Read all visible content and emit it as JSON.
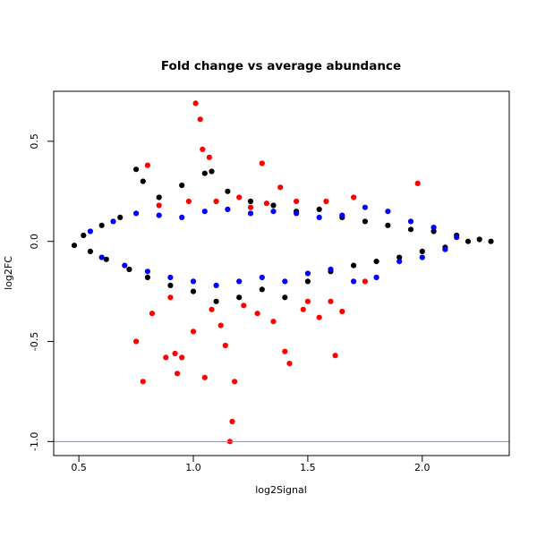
{
  "chart_data": {
    "type": "scatter",
    "title": "Fold change vs average abundance",
    "xlabel": "log2Signal",
    "ylabel": "log2FC",
    "xlim": [
      0.39,
      2.38
    ],
    "ylim": [
      -1.07,
      0.75
    ],
    "x_ticks": [
      "0.5",
      "1.0",
      "1.5",
      "2.0"
    ],
    "x_tick_values": [
      0.5,
      1.0,
      1.5,
      2.0
    ],
    "y_ticks": [
      "-1.0",
      "-0.5",
      "0.0",
      "0.5"
    ],
    "y_tick_values": [
      -1.0,
      -0.5,
      0.0,
      0.5
    ],
    "reference_line": {
      "y": -1.0,
      "color": "#7f7fff"
    },
    "grid": false,
    "legend": "none",
    "series": [
      {
        "color": "#000000",
        "description": "dense cloud of points along y=0",
        "points": [
          [
            0.48,
            -0.02
          ],
          [
            0.52,
            0.03
          ],
          [
            0.55,
            -0.05
          ],
          [
            0.6,
            0.08
          ],
          [
            0.62,
            -0.09
          ],
          [
            0.68,
            0.12
          ],
          [
            0.72,
            -0.14
          ],
          [
            0.75,
            0.36
          ],
          [
            0.78,
            0.3
          ],
          [
            0.8,
            -0.18
          ],
          [
            0.85,
            0.22
          ],
          [
            0.9,
            -0.22
          ],
          [
            0.95,
            0.28
          ],
          [
            1.0,
            -0.25
          ],
          [
            1.05,
            0.34
          ],
          [
            1.08,
            0.35
          ],
          [
            1.1,
            -0.3
          ],
          [
            1.15,
            0.25
          ],
          [
            1.2,
            -0.28
          ],
          [
            1.25,
            0.2
          ],
          [
            1.3,
            -0.24
          ],
          [
            1.35,
            0.18
          ],
          [
            1.4,
            -0.28
          ],
          [
            1.45,
            0.15
          ],
          [
            1.5,
            -0.2
          ],
          [
            1.55,
            0.16
          ],
          [
            1.6,
            -0.15
          ],
          [
            1.65,
            0.12
          ],
          [
            1.7,
            -0.12
          ],
          [
            1.75,
            0.1
          ],
          [
            1.8,
            -0.1
          ],
          [
            1.85,
            0.08
          ],
          [
            1.9,
            -0.08
          ],
          [
            1.95,
            0.06
          ],
          [
            2.0,
            -0.05
          ],
          [
            2.05,
            0.05
          ],
          [
            2.1,
            -0.03
          ],
          [
            2.15,
            0.03
          ],
          [
            2.2,
            0.0
          ],
          [
            2.25,
            0.01
          ],
          [
            2.3,
            0.0
          ]
        ]
      },
      {
        "color": "#0000ff",
        "description": "blue band of moderately changed points",
        "points": [
          [
            0.55,
            0.05
          ],
          [
            0.6,
            -0.08
          ],
          [
            0.65,
            0.1
          ],
          [
            0.7,
            -0.12
          ],
          [
            0.75,
            0.14
          ],
          [
            0.8,
            -0.15
          ],
          [
            0.85,
            0.13
          ],
          [
            0.9,
            -0.18
          ],
          [
            0.95,
            0.12
          ],
          [
            1.0,
            -0.2
          ],
          [
            1.05,
            0.15
          ],
          [
            1.1,
            -0.22
          ],
          [
            1.15,
            0.16
          ],
          [
            1.2,
            -0.2
          ],
          [
            1.25,
            0.14
          ],
          [
            1.3,
            -0.18
          ],
          [
            1.35,
            0.15
          ],
          [
            1.4,
            -0.2
          ],
          [
            1.45,
            0.14
          ],
          [
            1.5,
            -0.16
          ],
          [
            1.55,
            0.12
          ],
          [
            1.6,
            -0.14
          ],
          [
            1.65,
            0.13
          ],
          [
            1.7,
            -0.2
          ],
          [
            1.75,
            0.17
          ],
          [
            1.8,
            -0.18
          ],
          [
            1.85,
            0.15
          ],
          [
            1.9,
            -0.1
          ],
          [
            1.95,
            0.1
          ],
          [
            2.0,
            -0.08
          ],
          [
            2.05,
            0.07
          ],
          [
            2.1,
            -0.04
          ],
          [
            2.15,
            0.02
          ]
        ]
      },
      {
        "color": "#ff0000",
        "description": "red significantly changed points",
        "points": [
          [
            0.75,
            -0.5
          ],
          [
            0.78,
            -0.7
          ],
          [
            0.8,
            0.38
          ],
          [
            0.82,
            -0.36
          ],
          [
            0.85,
            0.18
          ],
          [
            0.88,
            -0.58
          ],
          [
            0.9,
            -0.28
          ],
          [
            0.92,
            -0.56
          ],
          [
            0.93,
            -0.66
          ],
          [
            0.95,
            -0.58
          ],
          [
            0.98,
            0.2
          ],
          [
            1.0,
            -0.45
          ],
          [
            1.01,
            0.69
          ],
          [
            1.03,
            0.61
          ],
          [
            1.04,
            0.46
          ],
          [
            1.05,
            -0.68
          ],
          [
            1.07,
            0.42
          ],
          [
            1.08,
            -0.34
          ],
          [
            1.1,
            0.2
          ],
          [
            1.12,
            -0.42
          ],
          [
            1.14,
            -0.52
          ],
          [
            1.16,
            -1.0
          ],
          [
            1.17,
            -0.9
          ],
          [
            1.18,
            -0.7
          ],
          [
            1.2,
            0.22
          ],
          [
            1.22,
            -0.32
          ],
          [
            1.25,
            0.17
          ],
          [
            1.28,
            -0.36
          ],
          [
            1.3,
            0.39
          ],
          [
            1.32,
            0.19
          ],
          [
            1.35,
            -0.4
          ],
          [
            1.38,
            0.27
          ],
          [
            1.4,
            -0.55
          ],
          [
            1.42,
            -0.61
          ],
          [
            1.45,
            0.2
          ],
          [
            1.48,
            -0.34
          ],
          [
            1.5,
            -0.3
          ],
          [
            1.55,
            -0.38
          ],
          [
            1.58,
            0.2
          ],
          [
            1.6,
            -0.3
          ],
          [
            1.62,
            -0.57
          ],
          [
            1.65,
            -0.35
          ],
          [
            1.7,
            0.22
          ],
          [
            1.75,
            -0.2
          ],
          [
            1.98,
            0.29
          ]
        ]
      }
    ]
  }
}
